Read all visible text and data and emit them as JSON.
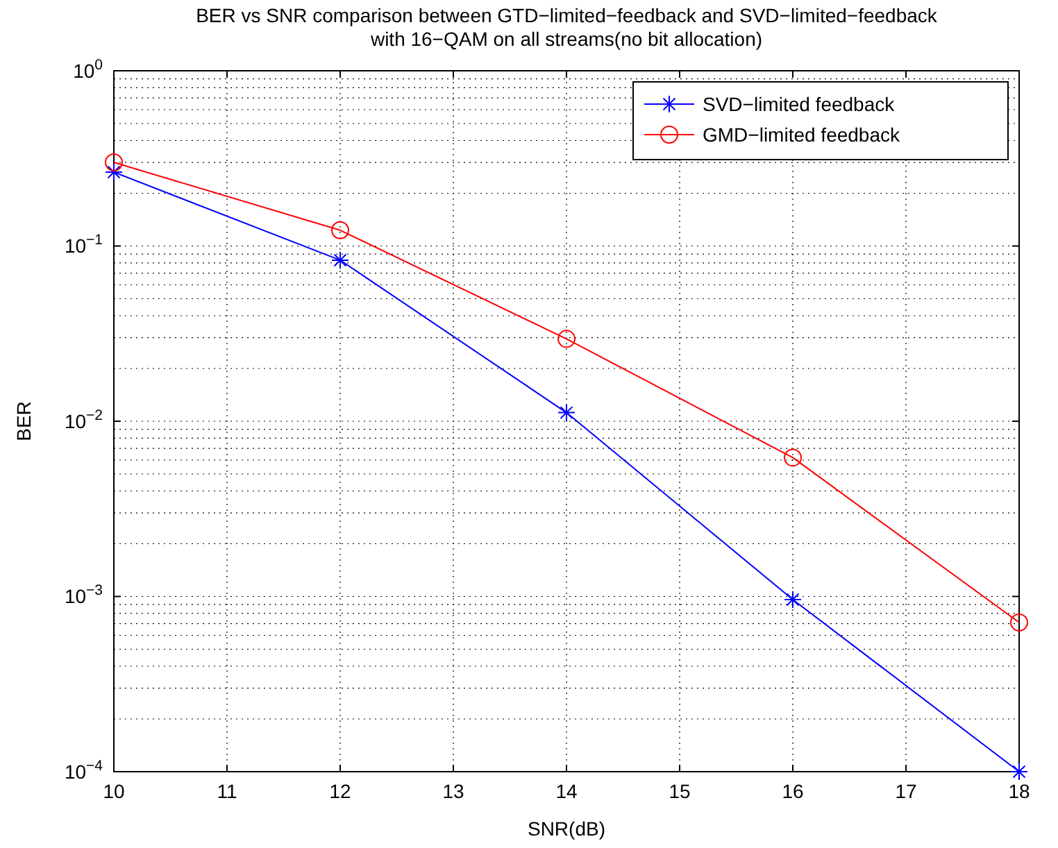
{
  "chart_data": {
    "type": "line",
    "title": "BER vs SNR comparison between GTD−limited−feedback and SVD−limited−feedback\nwith 16−QAM on all streams(no bit allocation)",
    "xlabel": "SNR(dB)",
    "ylabel": "BER",
    "x": [
      10,
      12,
      14,
      16,
      18
    ],
    "series": [
      {
        "name": "SVD−limited feedback",
        "color": "#0000ff",
        "marker": "cross",
        "values": [
          0.264,
          0.083,
          0.0112,
          0.00096,
          0.0001
        ]
      },
      {
        "name": "GMD−limited feedback",
        "color": "#ff0000",
        "marker": "circle",
        "values": [
          0.3,
          0.123,
          0.0295,
          0.0062,
          0.00071
        ]
      }
    ],
    "log": "y",
    "xlim": [
      10,
      18
    ],
    "xticks": [
      10,
      11,
      12,
      13,
      14,
      15,
      16,
      17,
      18
    ],
    "ylim": [
      0.0001,
      1
    ],
    "yticks": [
      {
        "value": 0.0001,
        "label": "10$^{−4}$"
      },
      {
        "value": 0.001,
        "label": "10$^{−3}$"
      },
      {
        "value": 0.01,
        "label": "10$^{−2}$"
      },
      {
        "value": 0.1,
        "label": "10$^{−1}$"
      },
      {
        "value": 1,
        "label": "10$^{0}$"
      }
    ],
    "grid": true,
    "legend": "top right",
    "line_style": "solid"
  }
}
